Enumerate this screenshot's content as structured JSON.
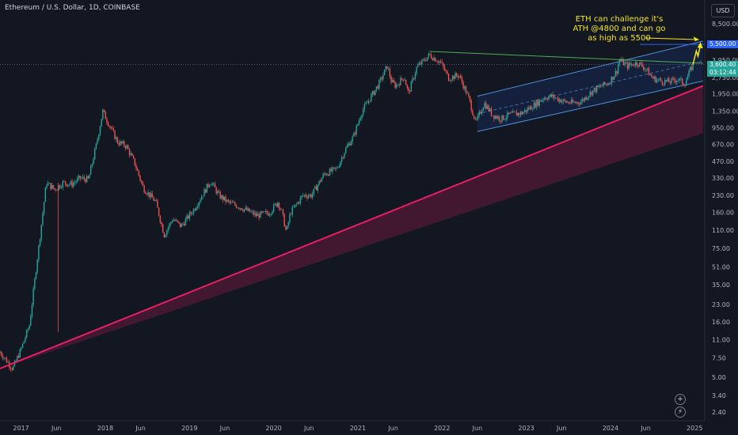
{
  "header": {
    "title": "Ethereum / U.S. Dollar, 1D, COINBASE",
    "currency": "USD"
  },
  "annotation": {
    "text": "ETH can challenge it's ATH @4800 and can go as high as 5500"
  },
  "price_labels": {
    "target": "5,500.00",
    "current": "3,600.40",
    "countdown": "03:12:44"
  },
  "controls": {
    "plus": "+",
    "bolt": "⚡"
  },
  "colors": {
    "up": "#26a69a",
    "down": "#ef5350",
    "support": "#e91e63",
    "channel": "#2962ff",
    "resistance": "#4caf50",
    "annotation": "#f5e622",
    "target": "#2962ff"
  },
  "chart_data": {
    "type": "candlestick",
    "title": "Ethereum / U.S. Dollar, 1D, COINBASE",
    "y_scale": "log",
    "ylim": [
      2.0,
      14000
    ],
    "y_ticks": [
      "8,500.00",
      "3,950.00",
      "2,750.00",
      "1,950.00",
      "1,350.00",
      "950.00",
      "670.00",
      "470.00",
      "330.00",
      "230.00",
      "160.00",
      "110.00",
      "75.00",
      "51.00",
      "35.00",
      "23.00",
      "16.00",
      "11.00",
      "7.50",
      "5.00",
      "3.40",
      "2.40"
    ],
    "x_ticks": [
      {
        "label": "2017",
        "t": 2016.5
      },
      {
        "label": "Jun",
        "t": 2016.92
      },
      {
        "label": "2018",
        "t": 2017.5
      },
      {
        "label": "Jun",
        "t": 2017.92
      },
      {
        "label": "2019",
        "t": 2018.5
      },
      {
        "label": "Jun",
        "t": 2018.92
      },
      {
        "label": "2020",
        "t": 2019.5
      },
      {
        "label": "Jun",
        "t": 2019.92
      },
      {
        "label": "2021",
        "t": 2020.5
      },
      {
        "label": "Jun",
        "t": 2020.92
      },
      {
        "label": "2022",
        "t": 2021.5
      },
      {
        "label": "Jun",
        "t": 2021.92
      },
      {
        "label": "2023",
        "t": 2022.5
      },
      {
        "label": "Jun",
        "t": 2022.92
      },
      {
        "label": "2024",
        "t": 2023.5
      },
      {
        "label": "Jun",
        "t": 2023.92
      },
      {
        "label": "2025",
        "t": 2024.5
      }
    ],
    "price_path": [
      [
        2016.25,
        8.5
      ],
      [
        2016.4,
        6.0
      ],
      [
        2016.5,
        9.0
      ],
      [
        2016.6,
        15
      ],
      [
        2016.68,
        50
      ],
      [
        2016.72,
        90
      ],
      [
        2016.8,
        300
      ],
      [
        2016.9,
        260
      ],
      [
        2017.0,
        300
      ],
      [
        2017.1,
        290
      ],
      [
        2017.2,
        330
      ],
      [
        2017.3,
        320
      ],
      [
        2017.4,
        700
      ],
      [
        2017.47,
        1350
      ],
      [
        2017.55,
        1000
      ],
      [
        2017.65,
        700
      ],
      [
        2017.75,
        650
      ],
      [
        2017.85,
        450
      ],
      [
        2017.95,
        270
      ],
      [
        2018.1,
        200
      ],
      [
        2018.2,
        100
      ],
      [
        2018.3,
        140
      ],
      [
        2018.4,
        120
      ],
      [
        2018.55,
        170
      ],
      [
        2018.75,
        310
      ],
      [
        2018.85,
        230
      ],
      [
        2018.95,
        200
      ],
      [
        2019.1,
        180
      ],
      [
        2019.3,
        150
      ],
      [
        2019.45,
        160
      ],
      [
        2019.55,
        200
      ],
      [
        2019.6,
        160
      ],
      [
        2019.65,
        105
      ],
      [
        2019.7,
        160
      ],
      [
        2019.85,
        230
      ],
      [
        2019.95,
        230
      ],
      [
        2020.1,
        360
      ],
      [
        2020.25,
        400
      ],
      [
        2020.35,
        600
      ],
      [
        2020.45,
        800
      ],
      [
        2020.55,
        1350
      ],
      [
        2020.65,
        1800
      ],
      [
        2020.75,
        2400
      ],
      [
        2020.85,
        3500
      ],
      [
        2020.9,
        2500
      ],
      [
        2020.95,
        2300
      ],
      [
        2021.05,
        2800
      ],
      [
        2021.1,
        1950
      ],
      [
        2021.2,
        3400
      ],
      [
        2021.35,
        4400
      ],
      [
        2021.48,
        3800
      ],
      [
        2021.58,
        2700
      ],
      [
        2021.7,
        2900
      ],
      [
        2021.82,
        1750
      ],
      [
        2021.9,
        1050
      ],
      [
        2022.0,
        1600
      ],
      [
        2022.1,
        1250
      ],
      [
        2022.2,
        1150
      ],
      [
        2022.3,
        1250
      ],
      [
        2022.45,
        1300
      ],
      [
        2022.6,
        1550
      ],
      [
        2022.72,
        1800
      ],
      [
        2022.8,
        1850
      ],
      [
        2022.95,
        1650
      ],
      [
        2023.05,
        1600
      ],
      [
        2023.15,
        1650
      ],
      [
        2023.28,
        2050
      ],
      [
        2023.4,
        2300
      ],
      [
        2023.48,
        2450
      ],
      [
        2023.58,
        3200
      ],
      [
        2023.6,
        4000
      ],
      [
        2023.7,
        3500
      ],
      [
        2023.82,
        3750
      ],
      [
        2023.92,
        3300
      ],
      [
        2024.0,
        2700
      ],
      [
        2024.1,
        2550
      ],
      [
        2024.2,
        2500
      ],
      [
        2024.3,
        2650
      ],
      [
        2024.38,
        2400
      ],
      [
        2024.44,
        3100
      ],
      [
        2024.48,
        3600.4
      ]
    ],
    "drawings": {
      "support_trendline": {
        "from": [
          2016.25,
          6.0
        ],
        "to": [
          2024.6,
          2300
        ]
      },
      "support_band_lower": {
        "from": [
          2016.25,
          6.0
        ],
        "to": [
          2024.6,
          850
        ]
      },
      "resistance_line": {
        "from": [
          2021.35,
          4750
        ],
        "to": [
          2024.6,
          3700
        ]
      },
      "channel_upper": {
        "from": [
          2021.92,
          1850
        ],
        "to": [
          2024.6,
          5900
        ]
      },
      "channel_lower": {
        "from": [
          2021.92,
          880
        ],
        "to": [
          2024.6,
          2550
        ]
      },
      "target_level": 5500,
      "current_level": 3600.4,
      "projection": [
        [
          2024.48,
          3600.4
        ],
        [
          2024.52,
          4800
        ],
        [
          2024.54,
          4300
        ],
        [
          2024.57,
          5500
        ]
      ]
    }
  }
}
